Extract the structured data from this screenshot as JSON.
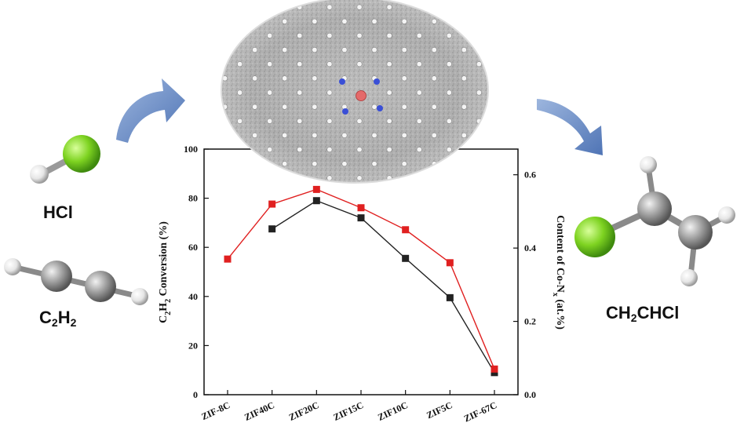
{
  "molecules": {
    "hcl": "HCl",
    "c2h2": {
      "base": "C",
      "sub1": "2",
      "mid": "H",
      "sub2": "2"
    },
    "product": {
      "pre": "CH",
      "sub": "2",
      "post": "CHCl"
    }
  },
  "colors": {
    "arrow": "#6c8fc7",
    "chlorine": "#7ed321",
    "carbon": "#9b9b9b",
    "hydrogen": "#eeeeee",
    "cobalt": "#e46a6a",
    "nitrogen": "#3a4fd6",
    "conversion_series": "#222222",
    "co_content_series": "#e02020"
  },
  "chart_data": {
    "type": "line",
    "categories": [
      "ZIF-8C",
      "ZIF40C",
      "ZIF20C",
      "ZIF15C",
      "ZIF10C",
      "ZIF5C",
      "ZIF-67C"
    ],
    "ylabel": {
      "pre": "C",
      "sub1": "2",
      "mid": "H",
      "sub2": "2",
      "post": " Conversion (%)"
    },
    "y2label": {
      "pre": "Content of Co-N",
      "sub": "x",
      "post": " (at.%)"
    },
    "ylim": [
      0,
      100
    ],
    "y2lim": [
      0,
      0.67
    ],
    "yticks": [
      "0",
      "20",
      "40",
      "60",
      "80",
      "100"
    ],
    "y2ticks": [
      "0.0",
      "0.2",
      "0.4",
      "0.6"
    ],
    "series": [
      {
        "axis": "left",
        "color": "#222222",
        "values": [
          null,
          67.5,
          79,
          72,
          55.5,
          39.5,
          9
        ]
      },
      {
        "axis": "right",
        "color": "#e02020",
        "values": [
          0.37,
          0.52,
          0.56,
          0.51,
          0.45,
          0.36,
          0.07
        ]
      }
    ]
  }
}
